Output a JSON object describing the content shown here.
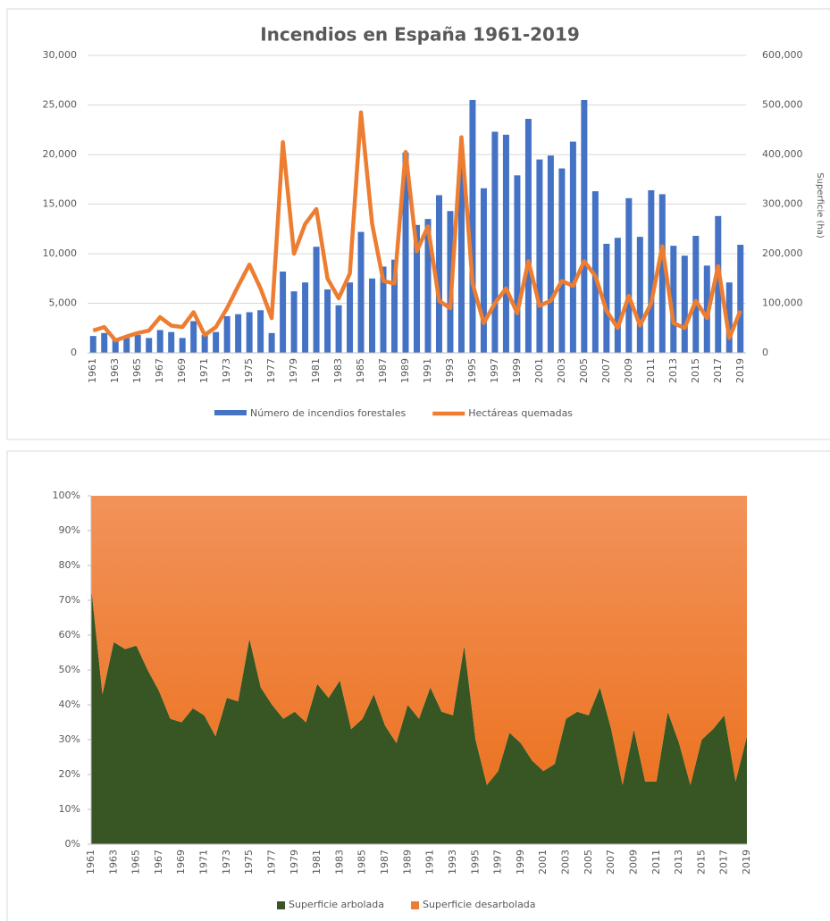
{
  "chart_data": [
    {
      "type": "bar",
      "title": "Incendios en España 1961-2019",
      "y2label": "Superficie (ha)",
      "categories": [
        "1961",
        null,
        "1963",
        null,
        "1965",
        null,
        "1967",
        null,
        "1969",
        null,
        "1971",
        null,
        "1973",
        null,
        "1975",
        null,
        "1977",
        null,
        "1979",
        null,
        "1981",
        null,
        "1983",
        null,
        "1985",
        null,
        "1987",
        null,
        "1989",
        null,
        "1991",
        null,
        "1993",
        null,
        "1995",
        null,
        "1997",
        null,
        "1999",
        null,
        "2001",
        null,
        "2003",
        null,
        "2005",
        null,
        "2007",
        null,
        "2009",
        null,
        "2011",
        null,
        "2013",
        null,
        "2015",
        null,
        "2017",
        null,
        "2019"
      ],
      "series": [
        {
          "name": "Número de incendios forestales",
          "type": "bar",
          "color": "#4472c4",
          "values": [
            1700,
            2000,
            1300,
            1500,
            1800,
            1500,
            2300,
            2100,
            1500,
            3200,
            1800,
            2100,
            3700,
            3900,
            4100,
            4300,
            2000,
            8200,
            6200,
            7100,
            10700,
            6400,
            4800,
            7100,
            12200,
            7500,
            8700,
            9400,
            20200,
            12900,
            13500,
            15900,
            14300,
            19500,
            25500,
            16600,
            22300,
            22000,
            17900,
            23600,
            19500,
            19900,
            18600,
            21300,
            25500,
            16300,
            11000,
            11600,
            15600,
            11700,
            16400,
            16000,
            10800,
            9800,
            11800,
            8800,
            13800,
            7100,
            10900
          ]
        },
        {
          "name": "Hectáreas quemadas",
          "type": "line",
          "axis": "y2",
          "color": "#ed7d31",
          "values": [
            45000,
            52000,
            25000,
            33000,
            40000,
            45000,
            72000,
            55000,
            52000,
            82000,
            36000,
            52000,
            90000,
            135000,
            178000,
            130000,
            70000,
            425000,
            200000,
            260000,
            290000,
            150000,
            110000,
            160000,
            485000,
            260000,
            145000,
            140000,
            405000,
            205000,
            255000,
            105000,
            90000,
            435000,
            140000,
            60000,
            100000,
            130000,
            80000,
            185000,
            95000,
            105000,
            145000,
            135000,
            185000,
            155000,
            85000,
            50000,
            115000,
            55000,
            100000,
            215000,
            60000,
            50000,
            105000,
            70000,
            175000,
            30000,
            85000
          ]
        }
      ],
      "ylim": [
        0,
        30000
      ],
      "yticks": [
        0,
        {
          "value": 5000,
          "label": "5,000"
        },
        {
          "value": 10000,
          "label": "10,000"
        },
        {
          "value": 15000,
          "label": "15,000"
        },
        {
          "value": 20000,
          "label": "20,000"
        },
        {
          "value": 25000,
          "label": "25,000"
        },
        {
          "value": 30000,
          "label": "30,000"
        }
      ],
      "y2lim": [
        0,
        600000
      ],
      "y2ticks": [
        0,
        {
          "value": 100000,
          "label": "100,000"
        },
        {
          "value": 200000,
          "label": "200,000"
        },
        {
          "value": 300000,
          "label": "300,000"
        },
        {
          "value": 400000,
          "label": "400,000"
        },
        {
          "value": 500000,
          "label": "500,000"
        },
        {
          "value": 600000,
          "label": "600,000"
        }
      ],
      "grid": true,
      "legend": "bottom"
    },
    {
      "type": "area",
      "stacked": true,
      "categories": [
        "1961",
        null,
        "1963",
        null,
        "1965",
        null,
        "1967",
        null,
        "1969",
        null,
        "1971",
        null,
        "1973",
        null,
        "1975",
        null,
        "1977",
        null,
        "1979",
        null,
        "1981",
        null,
        "1983",
        null,
        "1985",
        null,
        "1987",
        null,
        "1989",
        null,
        "1991",
        null,
        "1993",
        null,
        "1995",
        null,
        "1997",
        null,
        "1999",
        null,
        "2001",
        null,
        "2003",
        null,
        "2005",
        null,
        "2007",
        null,
        "2009",
        null,
        "2011",
        null,
        "2013",
        null,
        "2015",
        null,
        "2017",
        null,
        "2019"
      ],
      "series": [
        {
          "name": "Superficie arbolada",
          "color": "#375623",
          "values": [
            74,
            43,
            58,
            56,
            57,
            50,
            44,
            36,
            35,
            39,
            37,
            31,
            42,
            41,
            59,
            45,
            40,
            36,
            38,
            35,
            46,
            42,
            47,
            33,
            36,
            43,
            34,
            29,
            40,
            36,
            45,
            38,
            37,
            57,
            30,
            17,
            21,
            32,
            29,
            24,
            21,
            23,
            36,
            38,
            37,
            45,
            33,
            17,
            33,
            18,
            18,
            38,
            29,
            17,
            30,
            33,
            37,
            18,
            31
          ]
        },
        {
          "name": "Superficie desarbolada",
          "color": "#ed7d31",
          "values": [
            26,
            57,
            42,
            44,
            43,
            50,
            56,
            64,
            65,
            61,
            63,
            69,
            58,
            59,
            41,
            55,
            60,
            64,
            62,
            65,
            54,
            58,
            53,
            67,
            64,
            57,
            66,
            71,
            60,
            64,
            55,
            62,
            63,
            43,
            70,
            83,
            79,
            68,
            71,
            76,
            79,
            77,
            64,
            62,
            63,
            55,
            67,
            83,
            67,
            82,
            82,
            62,
            71,
            83,
            70,
            67,
            63,
            82,
            69
          ]
        }
      ],
      "ylim": [
        0,
        100
      ],
      "yticks": [
        {
          "value": 0,
          "label": "0%"
        },
        {
          "value": 10,
          "label": "10%"
        },
        {
          "value": 20,
          "label": "20%"
        },
        {
          "value": 30,
          "label": "30%"
        },
        {
          "value": 40,
          "label": "40%"
        },
        {
          "value": 50,
          "label": "50%"
        },
        {
          "value": 60,
          "label": "60%"
        },
        {
          "value": 70,
          "label": "70%"
        },
        {
          "value": 80,
          "label": "80%"
        },
        {
          "value": 90,
          "label": "90%"
        },
        {
          "value": 100,
          "label": "100%"
        }
      ],
      "grid": false,
      "legend": "bottom"
    }
  ]
}
